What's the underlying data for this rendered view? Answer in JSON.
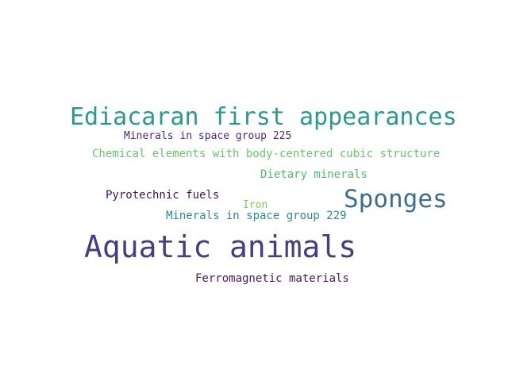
{
  "cloud": {
    "background": "#ffffff",
    "words": [
      {
        "text": "Ediacaran first appearances",
        "color": "#2a9a8e"
      },
      {
        "text": "Minerals in space group 225",
        "color": "#4b2a74"
      },
      {
        "text": "Chemical elements with body-centered cubic structure",
        "color": "#62c86b"
      },
      {
        "text": "Dietary minerals",
        "color": "#49be6b"
      },
      {
        "text": "Pyrotechnic fuels",
        "color": "#44155e"
      },
      {
        "text": "Sponges",
        "color": "#3b6f8f"
      },
      {
        "text": "Iron",
        "color": "#79cf4f"
      },
      {
        "text": "Minerals in space group 229",
        "color": "#2a8c8b"
      },
      {
        "text": "Aquatic animals",
        "color": "#463d82"
      },
      {
        "text": "Ferromagnetic materials",
        "color": "#441a5e"
      }
    ]
  }
}
